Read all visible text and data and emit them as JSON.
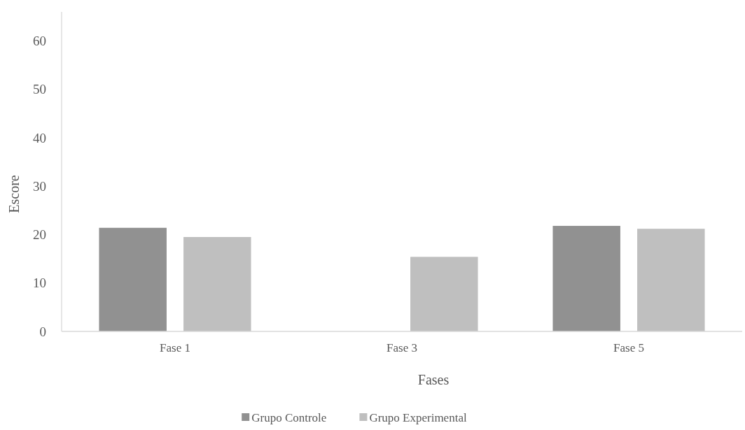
{
  "chart_data": {
    "type": "bar",
    "xlabel": "Fases",
    "ylabel": "Escore",
    "categories": [
      "Fase 1",
      "Fase 3",
      "Fase 5"
    ],
    "series": [
      {
        "name": "Grupo Controle",
        "color": "#919191",
        "values": [
          21.4,
          null,
          21.8
        ]
      },
      {
        "name": "Grupo Experimental",
        "color": "#bfbfbf",
        "values": [
          19.5,
          15.4,
          21.2
        ]
      }
    ],
    "ylim": [
      0,
      66
    ],
    "yticks": [
      0,
      10,
      20,
      30,
      40,
      50,
      60
    ],
    "grid": false,
    "legend": "bottom"
  }
}
